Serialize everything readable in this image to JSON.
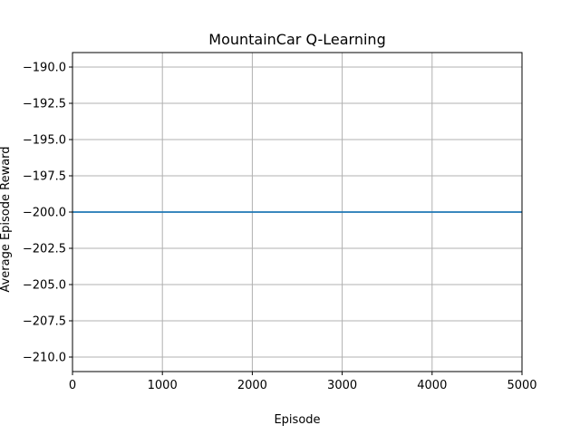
{
  "chart_data": {
    "type": "line",
    "title": "MountainCar Q-Learning",
    "xlabel": "Episode",
    "ylabel": "Average Episode Reward",
    "xlim": [
      0,
      5000
    ],
    "ylim": [
      -211,
      -189
    ],
    "x_ticks": [
      0,
      1000,
      2000,
      3000,
      4000,
      5000
    ],
    "x_tick_labels": [
      "0",
      "1000",
      "2000",
      "3000",
      "4000",
      "5000"
    ],
    "y_ticks": [
      -190.0,
      -192.5,
      -195.0,
      -197.5,
      -200.0,
      -202.5,
      -205.0,
      -207.5,
      -210.0
    ],
    "y_tick_labels": [
      "−190.0",
      "−192.5",
      "−195.0",
      "−197.5",
      "−200.0",
      "−202.5",
      "−205.0",
      "−207.5",
      "−210.0"
    ],
    "grid": true,
    "series": [
      {
        "color": "#1f77b4",
        "x": [
          0,
          5000
        ],
        "y": [
          -200,
          -200
        ]
      }
    ]
  }
}
